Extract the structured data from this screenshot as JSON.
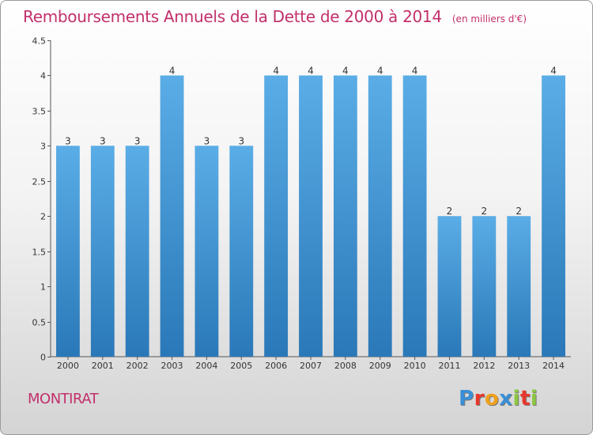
{
  "chart_data": {
    "type": "bar",
    "title": "Remboursements Annuels de la Dette de 2000 à 2014",
    "subtitle": "(en milliers d'€)",
    "xlabel": "",
    "ylabel": "",
    "categories": [
      "2000",
      "2001",
      "2002",
      "2003",
      "2004",
      "2005",
      "2006",
      "2007",
      "2008",
      "2009",
      "2010",
      "2011",
      "2012",
      "2013",
      "2014"
    ],
    "values": [
      3,
      3,
      3,
      4,
      3,
      3,
      4,
      4,
      4,
      4,
      4,
      2,
      2,
      2,
      4
    ],
    "data_labels": [
      "3",
      "3",
      "3",
      "4",
      "3",
      "3",
      "4",
      "4",
      "4",
      "4",
      "4",
      "2",
      "2",
      "2",
      "4"
    ],
    "ylim": [
      0,
      4.5
    ],
    "yticks": [
      0,
      0.5,
      1,
      1.5,
      2,
      2.5,
      3,
      3.5,
      4,
      4.5
    ],
    "ytick_labels": [
      "0",
      "0.5",
      "1",
      "1.5",
      "2",
      "2.5",
      "3",
      "3.5",
      "4",
      "4.5"
    ],
    "grid": false,
    "legend": "none",
    "colors": {
      "bar_light": "#5aade6",
      "bar_dark": "#2a78b8",
      "title": "#c2306b",
      "axis": "#555555"
    }
  },
  "commune": "MONTIRAT",
  "logo": {
    "letters": [
      "P",
      "r",
      "o",
      "x",
      "i",
      "t",
      "i"
    ],
    "colors": [
      "#3a8fd6",
      "#e8372c",
      "#f0a11c",
      "#3a8fd6",
      "#8cc63f",
      "#e8372c",
      "#8cc63f"
    ]
  }
}
